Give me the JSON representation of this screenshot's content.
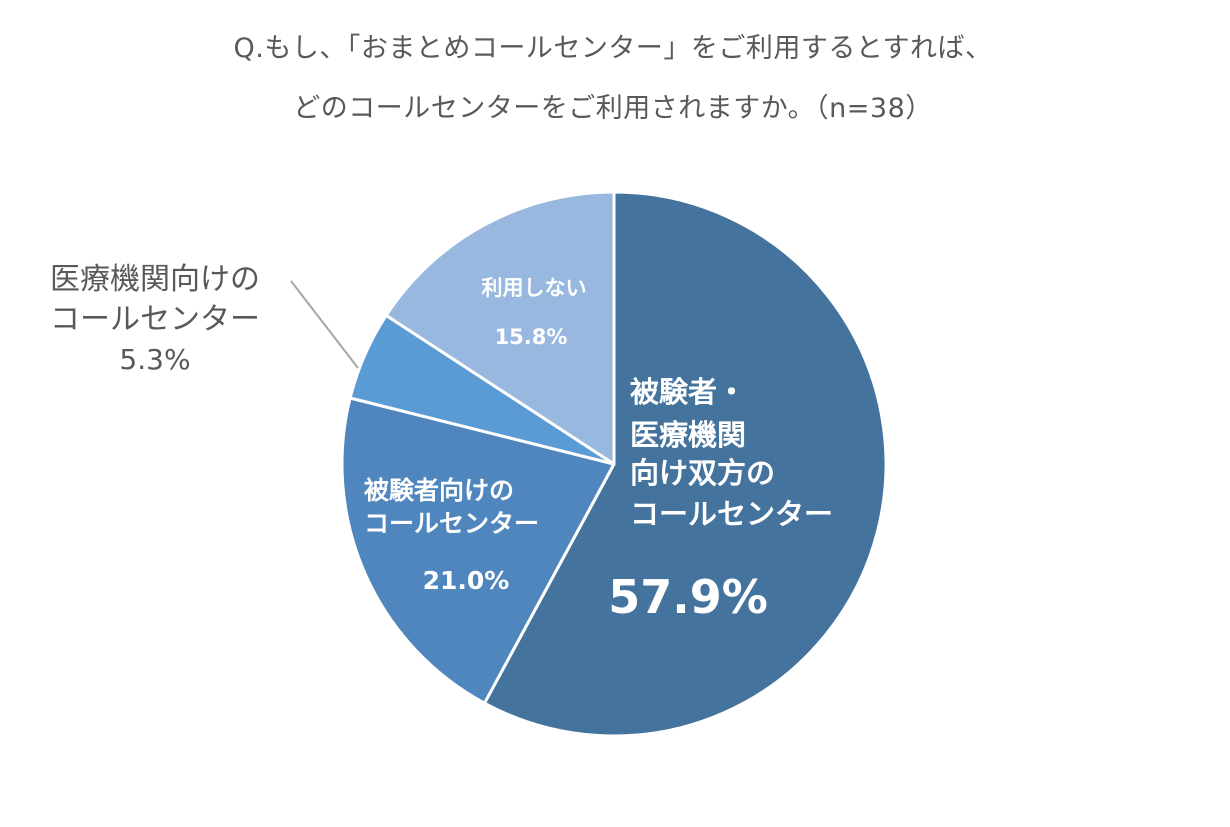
{
  "title": {
    "line1": "Q.もし、「おまとめコールセンター」をご利用するとすれば、",
    "line2": "どのコールセンターをご利用されますか。（n=38）"
  },
  "chart_data": {
    "type": "pie",
    "title": "Q.もし、「おまとめコールセンター」をご利用するとすれば、どのコールセンターをご利用されますか。（n=38）",
    "start": "12 o'clock",
    "direction": "clockwise",
    "slices": [
      {
        "label": "被験者・医療機関向け双方のコールセンター",
        "label_lines": [
          "被験者・",
          "医療機関",
          "向け双方の",
          "コールセンター"
        ],
        "value": 57.9,
        "value_text": "57.9%",
        "color": "#44739d"
      },
      {
        "label": "被験者向けのコールセンター",
        "label_lines": [
          "被験者向けの",
          "コールセンター"
        ],
        "value": 21.0,
        "value_text": "21.0%",
        "color": "#4e86bd"
      },
      {
        "label": "医療機関向けのコールセンター",
        "label_lines": [
          "医療機関向けの",
          "コールセンター"
        ],
        "value": 5.3,
        "value_text": "5.3%",
        "color": "#5b9bd5"
      },
      {
        "label": "利用しない",
        "label_lines": [
          "利用しない"
        ],
        "value": 15.8,
        "value_text": "15.8%",
        "color": "#98b8e0"
      }
    ],
    "legend": "none"
  },
  "colors": {
    "slice_border": "#ffffff",
    "inside_label": "#ffffff",
    "outside_label": "#595959",
    "leader_line": "#a6a6a6"
  }
}
